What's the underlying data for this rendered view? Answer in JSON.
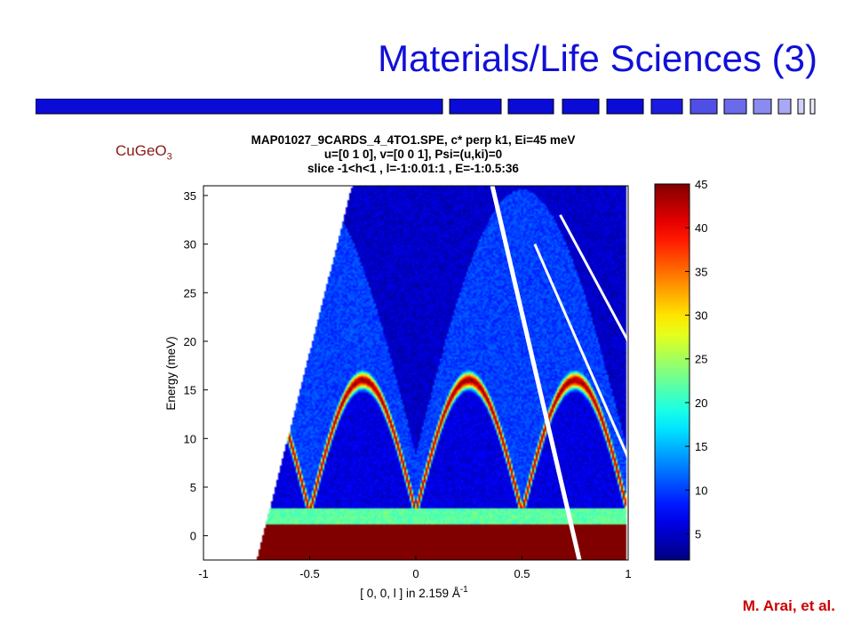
{
  "slide": {
    "title": "Materials/Life Sciences (3)",
    "compound": "CuGeO",
    "compound_subscript": "3",
    "credit": "M. Arai, et al."
  },
  "chart_data": {
    "type": "heatmap",
    "title_lines": [
      "MAP01027_9CARDS_4_4TO1.SPE, c* perp k1, Ei=45 meV",
      "u=[0 1 0], v=[0 0 1], Psi=(u,ki)=0",
      "slice -1<h<1 , l=-1:0.01:1 , E=-1:0.5:36"
    ],
    "xlabel": "[ 0, 0, l ]  in 2.159 Å",
    "xlabel_superscript": "-1",
    "ylabel": "Energy  (meV)",
    "xlim": [
      -1,
      1
    ],
    "ylim": [
      -2.5,
      36
    ],
    "xticks": [
      "-1",
      "-0.5",
      "0",
      "0.5",
      "1"
    ],
    "xtick_values": [
      -1,
      -0.5,
      0,
      0.5,
      1
    ],
    "yticks": [
      "0",
      "5",
      "10",
      "15",
      "20",
      "25",
      "30",
      "35"
    ],
    "ytick_values": [
      0,
      5,
      10,
      15,
      20,
      25,
      30,
      35
    ],
    "colorbar": {
      "range": [
        2,
        45
      ],
      "ticks": [
        "5",
        "10",
        "15",
        "20",
        "25",
        "30",
        "35",
        "40",
        "45"
      ],
      "tick_values": [
        5,
        10,
        15,
        20,
        25,
        30,
        35,
        40,
        45
      ]
    },
    "dispersion": {
      "description_values": "intensity peaks where E(l) = 2.4 + 13.6*|sin(2*pi*l)|",
      "gap_meV": 2.4,
      "max_meV": 16.0
    },
    "colormap": [
      "#00008f",
      "#0000ff",
      "#00ffff",
      "#ffff00",
      "#ff0000",
      "#800000"
    ]
  }
}
